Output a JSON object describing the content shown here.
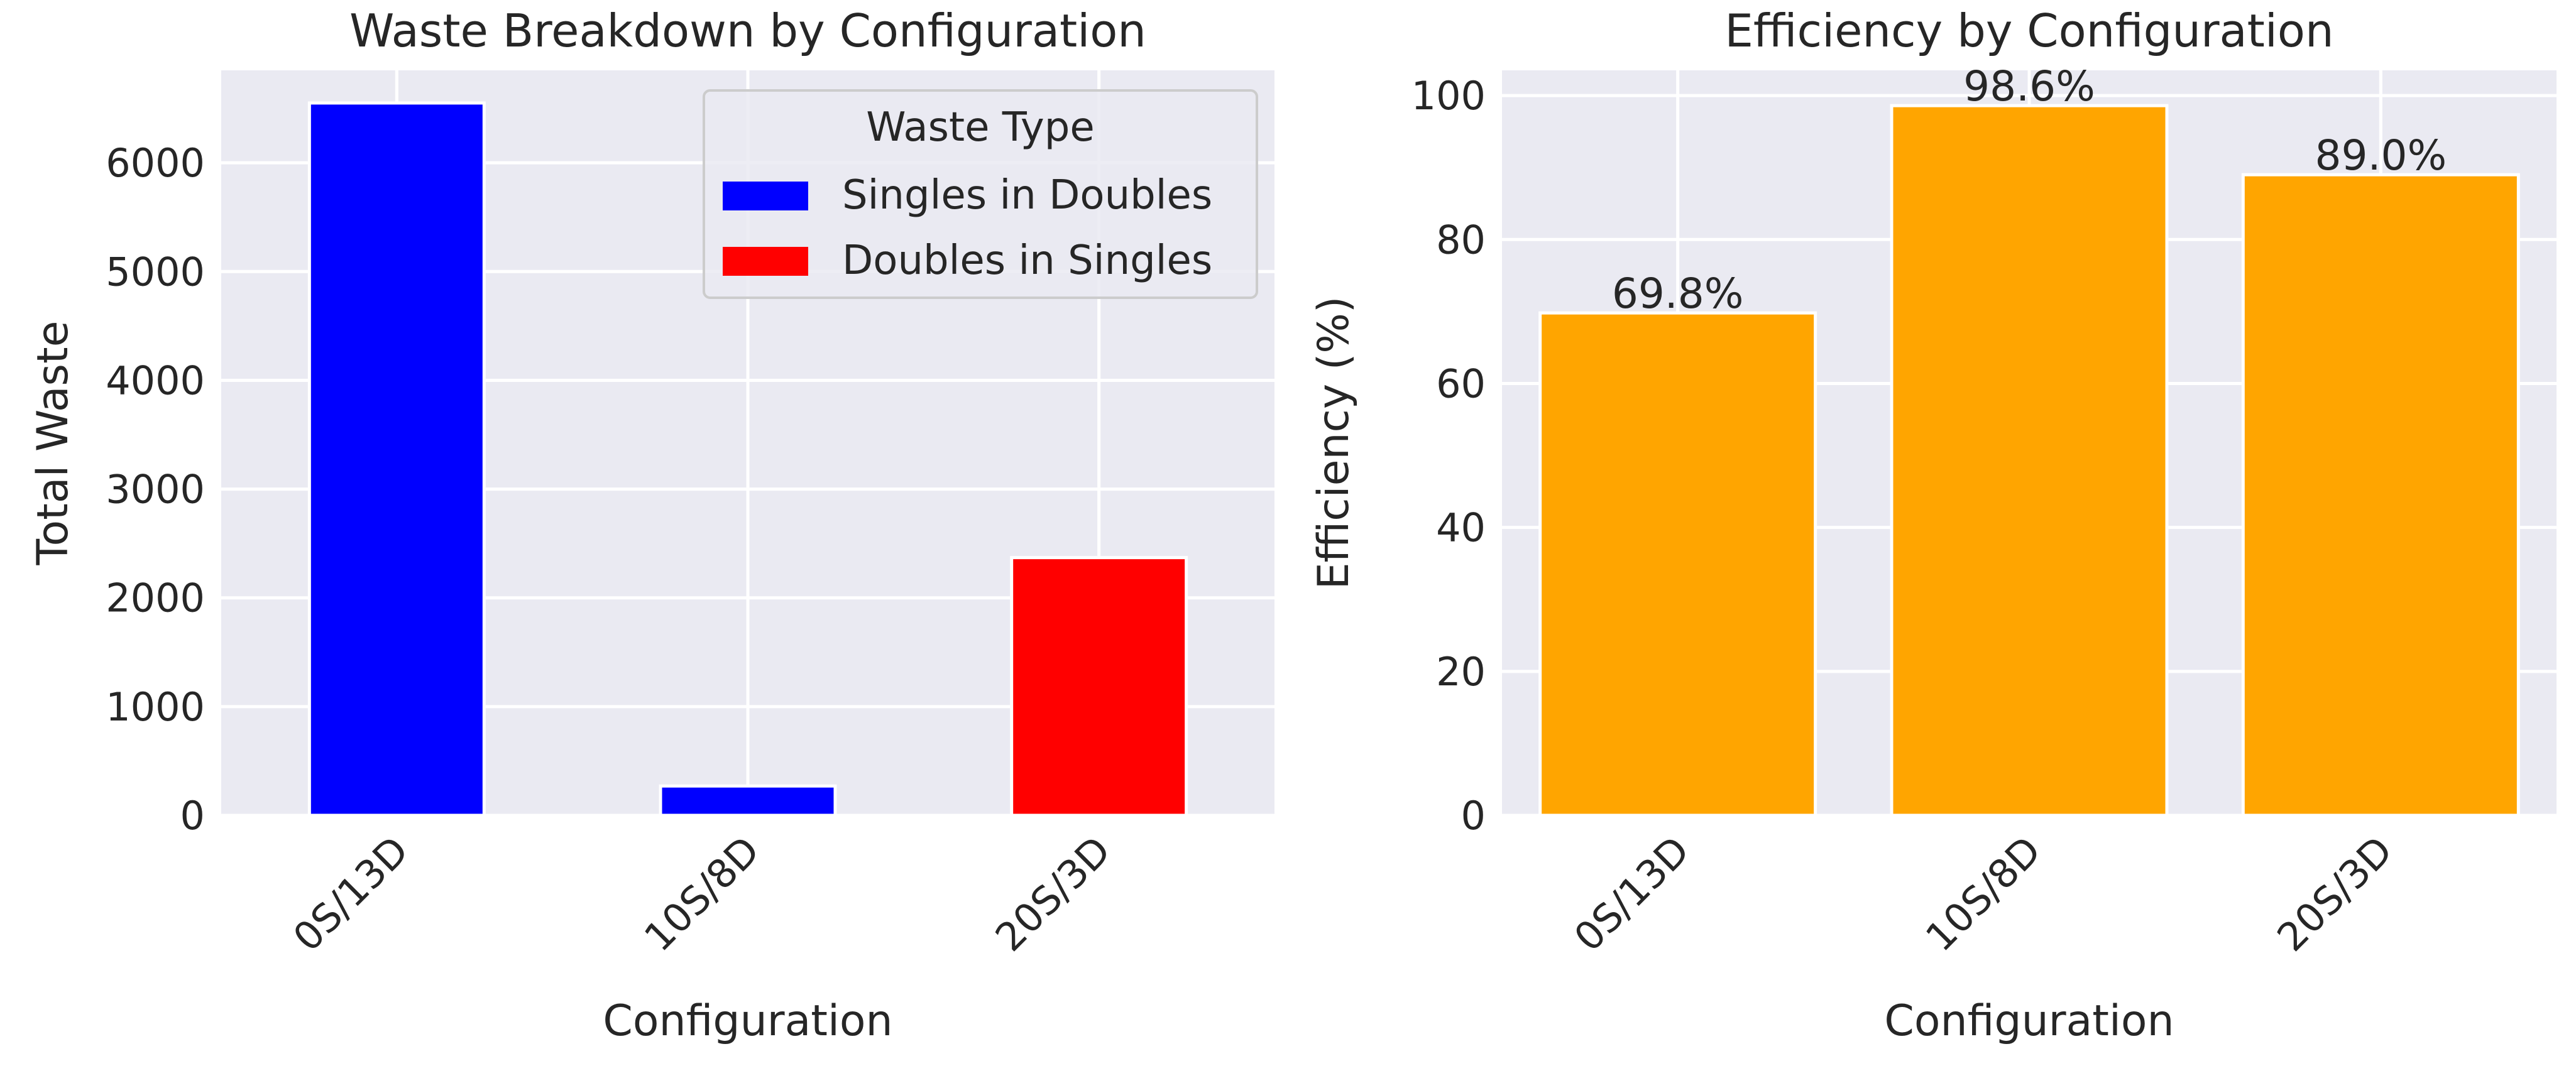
{
  "chart_data": [
    {
      "type": "bar",
      "stacked": true,
      "title": "Waste Breakdown by Configuration",
      "xlabel": "Configuration",
      "ylabel": "Total Waste",
      "categories": [
        "0S/13D",
        "10S/8D",
        "20S/3D"
      ],
      "series": [
        {
          "name": "Singles in Doubles",
          "color": "#0000ff",
          "values": [
            6550,
            270,
            0
          ]
        },
        {
          "name": "Doubles in Singles",
          "color": "#ff0000",
          "values": [
            0,
            0,
            2370
          ]
        }
      ],
      "ylim": [
        0,
        6850
      ],
      "yticks": [
        0,
        1000,
        2000,
        3000,
        4000,
        5000,
        6000
      ],
      "grid": true,
      "legend": {
        "title": "Waste Type",
        "placement": "top-right"
      }
    },
    {
      "type": "bar",
      "title": "Efficiency by Configuration",
      "xlabel": "Configuration",
      "ylabel": "Efficiency (%)",
      "categories": [
        "0S/13D",
        "10S/8D",
        "20S/3D"
      ],
      "values": [
        69.8,
        98.6,
        89.0
      ],
      "data_labels": [
        "69.8%",
        "98.6%",
        "89.0%"
      ],
      "color": "#ffa500",
      "ylim": [
        0,
        103.5
      ],
      "yticks": [
        0,
        20,
        40,
        60,
        80,
        100
      ],
      "grid": true
    }
  ],
  "theme": {
    "plot_background": "#eaeaf2",
    "grid_color": "#ffffff",
    "text_color": "#262626"
  }
}
